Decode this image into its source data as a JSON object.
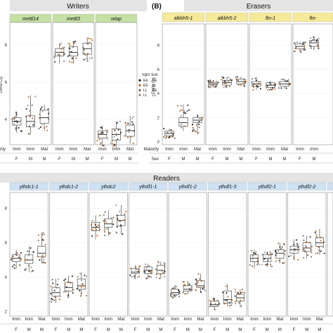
{
  "chart_data": [
    {
      "type": "box",
      "panel_label": "",
      "title": "Writers",
      "ylabel": "Delta Cq",
      "ylim": [
        2,
        10
      ],
      "yticks": [
        4,
        6,
        8
      ],
      "facets": [
        {
          "name": "mettl14",
          "medians": [
            3.9,
            3.9,
            4.1
          ],
          "q1": [
            3.7,
            3.6,
            3.8
          ],
          "q3": [
            4.1,
            4.2,
            4.5
          ],
          "min": [
            3.3,
            3.2,
            3.4
          ],
          "max": [
            4.4,
            5.3,
            4.8
          ]
        },
        {
          "name": "mettl3",
          "medians": [
            7.6,
            7.6,
            7.8
          ],
          "q1": [
            7.4,
            7.4,
            7.5
          ],
          "q3": [
            7.8,
            7.9,
            8.1
          ],
          "min": [
            7.0,
            7.0,
            7.1
          ],
          "max": [
            8.1,
            8.2,
            8.4
          ]
        },
        {
          "name": "wtap",
          "medians": [
            3.2,
            3.2,
            3.4
          ],
          "q1": [
            3.0,
            2.9,
            3.1
          ],
          "q3": [
            3.4,
            3.5,
            3.7
          ],
          "min": [
            2.6,
            2.5,
            2.7
          ],
          "max": [
            3.7,
            3.9,
            4.2
          ]
        }
      ],
      "maturity_label": "Maturity",
      "sex_label": "Sex",
      "maturity": [
        "Imm",
        "Imm",
        "Mat"
      ],
      "sex": [
        "F",
        "M",
        "M"
      ]
    },
    {
      "type": "box",
      "panel_label": "(B)",
      "title": "Erasers",
      "ylabel": "Delta Cq",
      "ylim": [
        0,
        10
      ],
      "yticks": [
        0,
        2,
        4,
        6,
        8
      ],
      "facets": [
        {
          "name": "alkbh5-1",
          "medians": [
            0.7,
            1.6,
            1.8
          ],
          "q1": [
            0.5,
            1.3,
            1.6
          ],
          "q3": [
            0.9,
            2.0,
            2.0
          ],
          "min": [
            0.3,
            0.9,
            0.6
          ],
          "max": [
            1.1,
            3.1,
            2.3
          ]
        },
        {
          "name": "alkbh5-2",
          "medians": [
            4.8,
            4.9,
            5.0
          ],
          "q1": [
            4.7,
            4.7,
            4.8
          ],
          "q3": [
            4.9,
            5.1,
            5.2
          ],
          "min": [
            4.5,
            4.5,
            4.6
          ],
          "max": [
            5.1,
            5.4,
            5.4
          ]
        },
        {
          "name": "fto-1",
          "medians": [
            4.8,
            4.7,
            4.8
          ],
          "q1": [
            4.6,
            4.5,
            4.6
          ],
          "q3": [
            5.0,
            4.9,
            5.0
          ],
          "min": [
            4.3,
            4.3,
            4.4
          ],
          "max": [
            5.3,
            5.0,
            5.2
          ]
        },
        {
          "name": "fto-",
          "medians": [
            7.9,
            8.2
          ],
          "q1": [
            7.7,
            7.9
          ],
          "q3": [
            8.1,
            8.4
          ],
          "min": [
            7.4,
            7.6
          ],
          "max": [
            8.3,
            8.7
          ]
        }
      ],
      "maturity_label": "Maturity",
      "sex_label": "Sex",
      "maturity": [
        "Imm",
        "Imm",
        "Mat"
      ],
      "sex": [
        "F",
        "M",
        "M"
      ]
    },
    {
      "type": "box",
      "panel_label": "",
      "title": "Readers",
      "ylabel": "",
      "ylim": [
        2,
        8
      ],
      "yticks": [
        2,
        4,
        6,
        8
      ],
      "facets": [
        {
          "name": "ythdc1-1",
          "medians": [
            5.1,
            5.0,
            5.4
          ],
          "q1": [
            4.9,
            4.8,
            5.2
          ],
          "q3": [
            5.3,
            5.3,
            5.8
          ],
          "min": [
            4.5,
            4.3,
            4.8
          ],
          "max": [
            5.6,
            5.8,
            6.6
          ]
        },
        {
          "name": "ythdc1-2",
          "medians": [
            3.1,
            3.4,
            3.5
          ],
          "q1": [
            2.9,
            3.2,
            3.3
          ],
          "q3": [
            3.4,
            3.7,
            3.9
          ],
          "min": [
            2.5,
            2.8,
            2.9
          ],
          "max": [
            3.9,
            4.1,
            4.3
          ]
        },
        {
          "name": "ythdc2",
          "medians": [
            6.9,
            7.1,
            7.3
          ],
          "q1": [
            6.7,
            6.9,
            7.0
          ],
          "q3": [
            7.2,
            7.4,
            7.6
          ],
          "min": [
            6.2,
            6.4,
            6.5
          ],
          "max": [
            7.6,
            7.9,
            8.2
          ]
        },
        {
          "name": "ythdf1-1",
          "medians": [
            4.3,
            4.4,
            4.4
          ],
          "q1": [
            4.2,
            4.2,
            4.2
          ],
          "q3": [
            4.5,
            4.6,
            4.7
          ],
          "min": [
            3.9,
            3.9,
            3.9
          ],
          "max": [
            4.7,
            4.8,
            4.9
          ]
        },
        {
          "name": "ythdf1-2",
          "medians": [
            3.1,
            3.3,
            3.5
          ],
          "q1": [
            3.0,
            3.2,
            3.4
          ],
          "q3": [
            3.3,
            3.5,
            3.8
          ],
          "min": [
            2.8,
            3.0,
            3.1
          ],
          "max": [
            3.5,
            3.8,
            4.2
          ]
        },
        {
          "name": "ythdf1-3",
          "medians": [
            2.4,
            2.7,
            2.8
          ],
          "q1": [
            2.3,
            2.5,
            2.6
          ],
          "q3": [
            2.6,
            3.2,
            3.0
          ],
          "min": [
            2.1,
            2.3,
            2.3
          ],
          "max": [
            2.8,
            3.6,
            3.3
          ]
        },
        {
          "name": "ythdf2-1",
          "medians": [
            5.1,
            5.1,
            5.4
          ],
          "q1": [
            4.9,
            4.9,
            5.1
          ],
          "q3": [
            5.3,
            5.3,
            5.6
          ],
          "min": [
            4.5,
            4.6,
            4.8
          ],
          "max": [
            5.6,
            5.5,
            6.0
          ]
        },
        {
          "name": "ythdf2-2",
          "medians": [
            5.6,
            5.7,
            6.0
          ],
          "q1": [
            5.4,
            5.5,
            5.8
          ],
          "q3": [
            5.8,
            6.0,
            6.3
          ],
          "min": [
            5.0,
            5.1,
            5.3
          ],
          "max": [
            6.2,
            6.4,
            6.8
          ]
        },
        {
          "name": "",
          "medians": [
            4.0
          ],
          "q1": [
            3.9
          ],
          "q3": [
            4.2
          ],
          "min": [
            3.7
          ],
          "max": [
            4.4
          ]
        }
      ],
      "maturity": [
        "Imm",
        "Imm",
        "Mat"
      ],
      "sex": [
        "F",
        "M",
        "M"
      ]
    }
  ],
  "legend": {
    "headers": [
      "Vgll3",
      "Six6"
    ],
    "rows": [
      [
        "EE",
        "EE"
      ],
      [
        "EE",
        "LL"
      ],
      [
        "LL",
        "EE"
      ],
      [
        "LL",
        "LL"
      ]
    ],
    "colors": [
      "#1a1a1a",
      "#b5651d",
      "#7a5a40",
      "#8c8c8c"
    ]
  },
  "colors": {
    "strip_green": "#c5e0a5",
    "strip_yellow": "#f5e99a",
    "strip_blue": "#cfe2f3",
    "title_bg": "#e4e4e4",
    "grid": "#ececec"
  }
}
